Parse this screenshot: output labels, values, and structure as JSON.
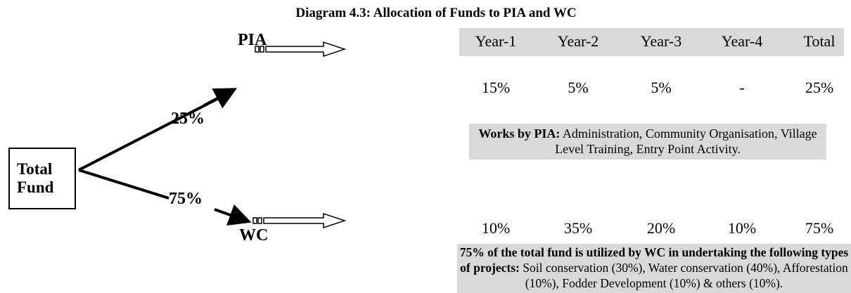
{
  "title": "Diagram 4.3: Allocation of Funds to PIA and WC",
  "source": {
    "lines": [
      "Total",
      "Fund"
    ]
  },
  "branches": [
    {
      "label": "PIA",
      "share": "25%"
    },
    {
      "label": "WC",
      "share": "75%"
    }
  ],
  "table": {
    "header": [
      "Year-1",
      "Year-2",
      "Year-3",
      "Year-4",
      "Total"
    ],
    "rows": [
      [
        "15%",
        "5%",
        "5%",
        "-",
        "25%"
      ],
      [
        "10%",
        "35%",
        "20%",
        "10%",
        "75%"
      ]
    ]
  },
  "notes": [
    {
      "bold": "Works by PIA:",
      "text": "Administration, Community Organisation, Village Level Training, Entry Point Activity."
    },
    {
      "bold": "75% of the total fund is utilized by WC in undertaking the following types of projects:",
      "text": "Soil conservation (30%), Water conservation (40%), Afforestation (10%), Fodder Development (10%) & others (10%)."
    }
  ]
}
